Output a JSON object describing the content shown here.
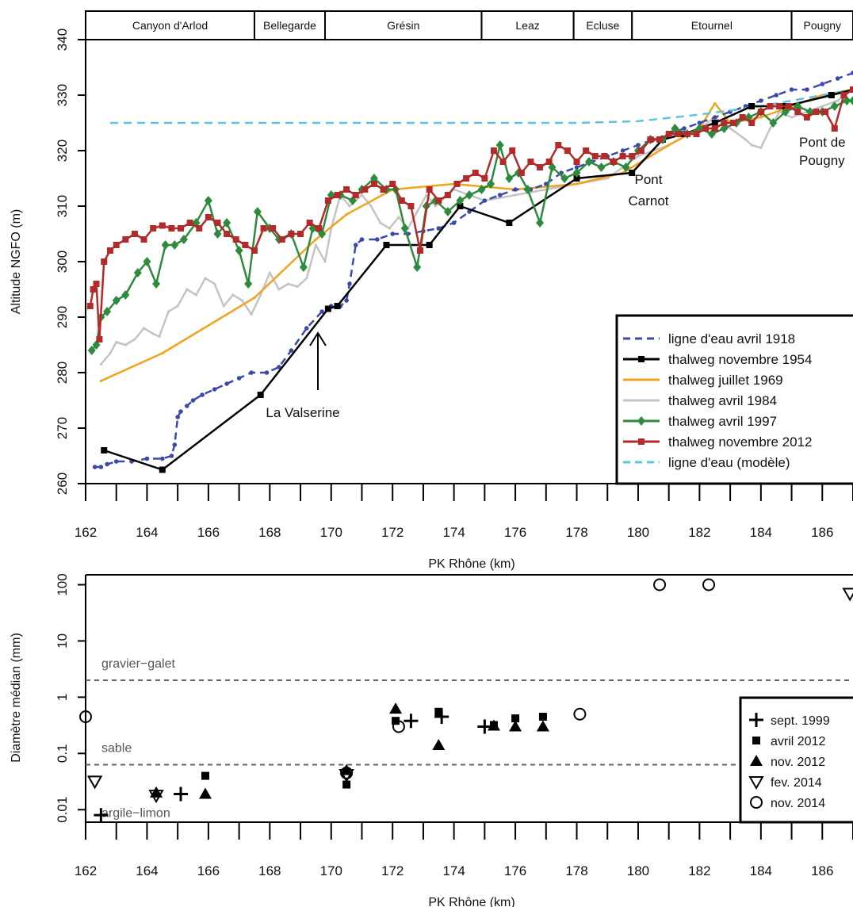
{
  "chart_data": [
    {
      "type": "line",
      "xlabel": "PK Rhône (km)",
      "ylabel": "Altitude NGFO (m)",
      "xlim": [
        162,
        187
      ],
      "ylim": [
        260,
        340
      ],
      "xticks": [
        "162",
        "164",
        "166",
        "168",
        "170",
        "172",
        "174",
        "176",
        "178",
        "180",
        "182",
        "184",
        "186"
      ],
      "yticks": [
        "260",
        "270",
        "280",
        "290",
        "300",
        "310",
        "320",
        "330",
        "340"
      ],
      "reaches": [
        {
          "label": "Canyon d'Arlod",
          "start": 162,
          "end": 167.5
        },
        {
          "label": "Bellegarde",
          "start": 167.5,
          "end": 169.8
        },
        {
          "label": "Grésin",
          "start": 169.8,
          "end": 174.9
        },
        {
          "label": "Leaz",
          "start": 174.9,
          "end": 177.9
        },
        {
          "label": "Ecluse",
          "start": 177.9,
          "end": 179.8
        },
        {
          "label": "Etournel",
          "start": 179.8,
          "end": 185
        },
        {
          "label": "Pougny",
          "start": 185,
          "end": 187
        }
      ],
      "annotations": [
        {
          "text": "La Valserine"
        },
        {
          "text_lines": [
            "Pont",
            "Carnot"
          ]
        },
        {
          "text_lines": [
            "Pont de",
            "Pougny"
          ]
        }
      ],
      "legend_position": "bottom-right",
      "series": [
        {
          "name": "ligne d'eau avril 1918",
          "color": "#3b4aa8",
          "style": "dashed",
          "marker": "dot",
          "x": [
            162.3,
            162.5,
            162.7,
            163.0,
            163.5,
            164.0,
            164.5,
            164.8,
            164.9,
            165.0,
            165.1,
            165.3,
            165.5,
            165.8,
            166.2,
            166.6,
            167.0,
            167.4,
            167.9,
            168.3,
            168.7,
            169.2,
            169.7,
            170.0,
            170.3,
            170.5,
            170.6,
            170.8,
            171.0,
            171.5,
            172.0,
            172.5,
            173.0,
            173.5,
            174.0,
            174.5,
            175.0,
            175.5,
            176.0,
            176.5,
            177.0,
            177.5,
            178.0,
            178.5,
            179.0,
            179.5,
            180.0,
            180.5,
            181.0,
            181.5,
            182.0,
            182.5,
            183.0,
            183.5,
            184.0,
            184.5,
            185.0,
            185.5,
            186.0,
            186.5,
            187.0
          ],
          "y": [
            263,
            263,
            263.5,
            264,
            264,
            264.5,
            264.5,
            265,
            267,
            272,
            273,
            274,
            275,
            276,
            277,
            278,
            279,
            280,
            280,
            281,
            284,
            288,
            291,
            292,
            292,
            293,
            296,
            303,
            304,
            304,
            305,
            305,
            305.5,
            306,
            307,
            309,
            311,
            312,
            313,
            313,
            314,
            316,
            317,
            318,
            319,
            320,
            321,
            322,
            323,
            324,
            325,
            326,
            327,
            328,
            329,
            330,
            331,
            331,
            332,
            333,
            334
          ]
        },
        {
          "name": "thalweg novembre 1954",
          "color": "#000000",
          "style": "solid",
          "marker": "square",
          "x": [
            162.6,
            164.5,
            167.7,
            169.9,
            170.2,
            171.8,
            173.2,
            174.2,
            175.8,
            178.0,
            179.8,
            180.8,
            181.5,
            182.5,
            183.7,
            184.8,
            186.3,
            187.0
          ],
          "y": [
            266,
            262.5,
            276,
            291.5,
            292,
            303,
            303,
            310,
            307,
            315,
            316,
            322,
            323,
            325,
            328,
            328,
            330,
            331
          ]
        },
        {
          "name": "thalweg juillet 1969",
          "color": "#f0a41e",
          "style": "solid",
          "marker": "tick",
          "x": [
            162.5,
            164.5,
            167.5,
            169.5,
            170.5,
            172.0,
            174.0,
            176.0,
            178.0,
            179.5,
            181.0,
            182.0,
            182.5,
            183.0,
            184.0,
            185.0,
            186.0,
            187.0
          ],
          "y": [
            278.5,
            283.5,
            293.5,
            304,
            308.5,
            313,
            314,
            313,
            314,
            316,
            321,
            324,
            328.5,
            325,
            326,
            328,
            330,
            331
          ]
        },
        {
          "name": "thalweg avril 1984",
          "color": "#c4c4c4",
          "style": "solid",
          "marker": "tick",
          "x": [
            162.5,
            162.8,
            163.0,
            163.3,
            163.6,
            163.9,
            164.2,
            164.4,
            164.7,
            165.0,
            165.3,
            165.6,
            165.9,
            166.2,
            166.5,
            166.8,
            167.1,
            167.4,
            167.7,
            168.0,
            168.3,
            168.6,
            168.9,
            169.2,
            169.5,
            169.8,
            170.0,
            170.3,
            170.6,
            171.0,
            171.3,
            171.6,
            171.9,
            172.2,
            172.5,
            172.8,
            173.1,
            173.4,
            174.0,
            175.0,
            176.0,
            177.0,
            178.0,
            179.0,
            180.0,
            181.0,
            182.0,
            182.5,
            183.0,
            183.5,
            183.7,
            184.0,
            184.3,
            184.6,
            185.0,
            185.5,
            186.0,
            186.5,
            187.0
          ],
          "y": [
            281.5,
            283.5,
            285.5,
            285,
            286,
            288,
            287,
            286.5,
            291,
            292,
            295,
            294,
            297,
            296,
            292,
            294,
            293,
            290.5,
            294,
            298,
            295,
            296,
            295.5,
            297,
            303,
            300,
            306,
            312,
            310,
            312,
            310,
            307,
            306,
            308,
            306,
            309,
            312,
            310,
            313,
            311,
            312,
            313,
            314,
            315,
            319,
            321,
            324,
            326,
            324,
            322,
            321,
            320.5,
            324,
            327,
            326,
            327,
            328,
            329,
            331
          ]
        },
        {
          "name": "thalweg avril 1997",
          "color": "#2e8b3e",
          "style": "solid",
          "marker": "diamond",
          "x": [
            162.2,
            162.35,
            162.5,
            162.7,
            163.0,
            163.3,
            163.7,
            164.0,
            164.3,
            164.6,
            164.9,
            165.2,
            165.6,
            166.0,
            166.3,
            166.6,
            167.0,
            167.3,
            167.6,
            168.0,
            168.3,
            168.7,
            169.1,
            169.4,
            169.7,
            170.0,
            170.3,
            170.7,
            171.0,
            171.4,
            171.8,
            172.1,
            172.4,
            172.8,
            173.1,
            173.4,
            173.8,
            174.2,
            174.5,
            174.9,
            175.2,
            175.5,
            175.8,
            176.1,
            176.4,
            176.8,
            177.2,
            177.6,
            178.0,
            178.4,
            178.8,
            179.2,
            179.6,
            180.0,
            180.4,
            180.8,
            181.2,
            181.6,
            182.0,
            182.4,
            182.8,
            183.2,
            183.6,
            184.0,
            184.4,
            184.8,
            185.2,
            185.6,
            186.0,
            186.4,
            186.8,
            187.0
          ],
          "y": [
            284,
            285,
            290,
            291,
            293,
            294,
            298,
            300,
            296,
            303,
            303,
            304,
            307,
            311,
            305,
            307,
            302,
            296,
            309,
            306,
            304,
            305,
            299,
            306,
            305,
            312,
            312,
            311,
            313,
            315,
            313,
            313,
            306,
            299,
            310,
            311,
            309,
            311,
            312,
            313,
            314,
            321,
            315,
            316,
            313,
            307,
            317,
            315,
            316,
            318,
            317,
            318,
            317,
            320,
            322,
            322,
            324,
            323,
            324,
            323,
            324,
            325,
            326,
            327,
            325,
            327,
            328,
            327,
            327,
            328,
            329,
            329
          ]
        },
        {
          "name": "thalweg novembre 2012",
          "color": "#b22a2a",
          "style": "solid",
          "marker": "square",
          "x": [
            162.15,
            162.25,
            162.35,
            162.45,
            162.6,
            162.8,
            163.0,
            163.3,
            163.6,
            163.9,
            164.2,
            164.5,
            164.8,
            165.1,
            165.4,
            165.7,
            166.0,
            166.3,
            166.6,
            166.9,
            167.2,
            167.5,
            167.8,
            168.1,
            168.4,
            168.7,
            169.0,
            169.3,
            169.6,
            169.9,
            170.2,
            170.5,
            170.8,
            171.1,
            171.4,
            171.7,
            172.0,
            172.3,
            172.6,
            172.9,
            173.2,
            173.5,
            173.8,
            174.1,
            174.4,
            174.7,
            175.0,
            175.3,
            175.6,
            175.9,
            176.2,
            176.5,
            176.8,
            177.1,
            177.4,
            177.7,
            178.0,
            178.3,
            178.6,
            178.9,
            179.2,
            179.5,
            179.8,
            180.1,
            180.4,
            180.7,
            181.0,
            181.3,
            181.6,
            181.9,
            182.2,
            182.5,
            182.8,
            183.1,
            183.4,
            183.7,
            184.0,
            184.3,
            184.6,
            184.9,
            185.2,
            185.5,
            185.8,
            186.1,
            186.4,
            186.7,
            187.0
          ],
          "y": [
            292,
            295,
            296,
            286,
            300,
            302,
            303,
            304,
            305,
            304,
            306,
            306.5,
            306,
            306,
            307,
            306,
            308,
            307,
            305,
            304,
            303,
            302,
            306,
            306,
            304,
            305,
            305,
            307,
            306,
            311,
            312,
            313,
            312,
            313,
            314,
            313,
            314,
            311,
            310,
            302,
            313,
            311,
            312,
            314,
            315,
            316,
            315,
            320,
            318,
            320,
            316,
            318,
            317,
            318,
            321,
            320,
            318,
            320,
            319,
            319,
            318,
            319,
            319,
            320,
            322,
            322,
            323,
            323,
            323,
            323,
            324,
            324,
            325,
            325,
            326,
            325,
            327,
            328,
            328,
            328,
            327,
            326,
            327,
            327,
            324,
            330,
            331
          ]
        },
        {
          "name": "ligne d'eau (modèle)",
          "color": "#5bc4e0",
          "style": "dashed",
          "marker": "none",
          "x": [
            162.8,
            167.0,
            172.0,
            176.0,
            178.0,
            180.0,
            182.0,
            184.0,
            186.0,
            187.0
          ],
          "y": [
            325,
            325,
            325,
            325,
            325,
            325.3,
            326.5,
            328,
            330,
            331
          ]
        }
      ]
    },
    {
      "type": "scatter",
      "xlabel": "PK Rhône (km)",
      "ylabel": "Diamètre médian (mm)",
      "yscale": "log",
      "xlim": [
        162,
        187
      ],
      "ylim": [
        0.006,
        150
      ],
      "xticks": [
        "162",
        "164",
        "166",
        "168",
        "170",
        "172",
        "174",
        "176",
        "178",
        "180",
        "182",
        "184",
        "186"
      ],
      "yticks": [
        {
          "value": 0.01,
          "label": "0.01"
        },
        {
          "value": 0.1,
          "label": "0.1"
        },
        {
          "value": 1,
          "label": "1"
        },
        {
          "value": 10,
          "label": "10"
        },
        {
          "value": 100,
          "label": "100"
        }
      ],
      "reference_lines": [
        {
          "value": 2,
          "label": "gravier−galet"
        },
        {
          "value": 0.063,
          "label": "sable"
        },
        {
          "value": 0.0085,
          "label": "argile−limon",
          "line": false
        }
      ],
      "legend_position": "bottom-right",
      "series": [
        {
          "name": "sept. 1999",
          "marker": "plus",
          "x": [
            162.5,
            165.1,
            172.6,
            173.6,
            175.0
          ],
          "y": [
            0.008,
            0.019,
            0.38,
            0.45,
            0.3
          ]
        },
        {
          "name": "avril 2012",
          "marker": "square",
          "x": [
            165.9,
            170.5,
            172.1,
            173.5,
            175.3,
            176.0,
            176.9
          ],
          "y": [
            0.04,
            0.028,
            0.38,
            0.55,
            0.32,
            0.42,
            0.45
          ]
        },
        {
          "name": "nov. 2012",
          "marker": "triangle",
          "x": [
            164.3,
            165.9,
            170.5,
            172.1,
            173.5,
            175.3,
            176.0,
            176.9
          ],
          "y": [
            0.02,
            0.019,
            0.05,
            0.62,
            0.14,
            0.31,
            0.3,
            0.3
          ]
        },
        {
          "name": "fev. 2014",
          "marker": "triangle-down",
          "x": [
            162.3,
            164.3,
            170.5,
            186.9
          ],
          "y": [
            0.032,
            0.018,
            0.042,
            70
          ]
        },
        {
          "name": "nov. 2014",
          "marker": "circle",
          "x": [
            162.0,
            170.5,
            172.2,
            178.1,
            180.7,
            182.3
          ],
          "y": [
            0.45,
            0.045,
            0.3,
            0.5,
            100,
            100
          ]
        }
      ]
    }
  ]
}
